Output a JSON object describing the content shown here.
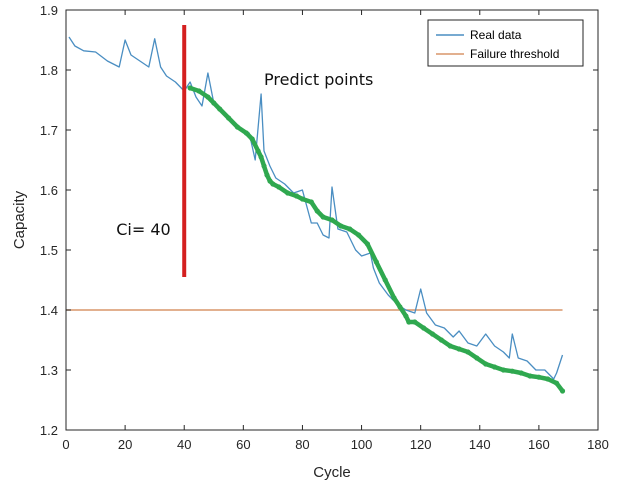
{
  "chart_data": {
    "type": "line",
    "xlabel": "Cycle",
    "ylabel": "Capacity",
    "xlim": [
      0,
      180
    ],
    "ylim": [
      1.2,
      1.9
    ],
    "xticks": [
      0,
      20,
      40,
      60,
      80,
      100,
      120,
      140,
      160,
      180
    ],
    "yticks": [
      1.2,
      1.3,
      1.4,
      1.5,
      1.6,
      1.7,
      1.8,
      1.9
    ],
    "grid": false,
    "legend_position": "top-right",
    "legend": [
      "Real data",
      "Failure threshold"
    ],
    "colors": {
      "real": "#4a8ec2",
      "threshold": "#d9956a",
      "predict": "#2fa84f",
      "marker": "#d42020",
      "axis": "#262626"
    },
    "series": [
      {
        "name": "Real data",
        "x": [
          1,
          3,
          6,
          10,
          14,
          18,
          20,
          22,
          25,
          28,
          30,
          32,
          34,
          37,
          40,
          42,
          44,
          46,
          48,
          50,
          53,
          56,
          59,
          62,
          64,
          66,
          67,
          69,
          71,
          74,
          77,
          80,
          83,
          85,
          87,
          89,
          90,
          92,
          95,
          98,
          100,
          103,
          104,
          106,
          109,
          112,
          115,
          118,
          120,
          122,
          125,
          128,
          131,
          133,
          136,
          139,
          142,
          145,
          148,
          150,
          151,
          153,
          156,
          159,
          162,
          165,
          166,
          168
        ],
        "y": [
          1.855,
          1.84,
          1.832,
          1.83,
          1.815,
          1.805,
          1.85,
          1.825,
          1.815,
          1.805,
          1.852,
          1.805,
          1.79,
          1.78,
          1.765,
          1.78,
          1.755,
          1.74,
          1.795,
          1.745,
          1.73,
          1.715,
          1.7,
          1.695,
          1.65,
          1.76,
          1.665,
          1.64,
          1.62,
          1.61,
          1.595,
          1.6,
          1.545,
          1.545,
          1.525,
          1.52,
          1.605,
          1.535,
          1.53,
          1.5,
          1.49,
          1.495,
          1.47,
          1.445,
          1.425,
          1.41,
          1.4,
          1.395,
          1.435,
          1.395,
          1.375,
          1.37,
          1.355,
          1.365,
          1.345,
          1.34,
          1.36,
          1.34,
          1.33,
          1.32,
          1.36,
          1.32,
          1.315,
          1.3,
          1.3,
          1.285,
          1.295,
          1.325
        ]
      },
      {
        "name": "Failure threshold",
        "x": [
          0,
          168
        ],
        "y": [
          1.4,
          1.4
        ]
      },
      {
        "x": [
          42,
          45,
          48,
          50,
          52,
          55,
          58,
          61,
          63,
          65,
          66,
          67,
          68,
          69,
          70,
          72,
          75,
          78,
          80,
          83,
          85,
          87,
          90,
          93,
          96,
          99,
          102,
          105,
          108,
          111,
          113,
          115,
          116,
          118,
          121,
          124,
          127,
          130,
          133,
          136,
          139,
          142,
          145,
          148,
          151,
          154,
          157,
          160,
          163,
          166,
          168
        ],
        "y": [
          1.77,
          1.765,
          1.755,
          1.745,
          1.735,
          1.72,
          1.705,
          1.695,
          1.685,
          1.665,
          1.655,
          1.64,
          1.625,
          1.615,
          1.61,
          1.605,
          1.595,
          1.59,
          1.585,
          1.58,
          1.565,
          1.555,
          1.55,
          1.54,
          1.535,
          1.525,
          1.51,
          1.48,
          1.45,
          1.42,
          1.405,
          1.39,
          1.38,
          1.38,
          1.37,
          1.36,
          1.35,
          1.34,
          1.335,
          1.33,
          1.32,
          1.31,
          1.305,
          1.3,
          1.298,
          1.295,
          1.29,
          1.288,
          1.285,
          1.278,
          1.265
        ]
      }
    ],
    "vertical_marker": {
      "x": 40,
      "y": [
        1.455,
        1.875
      ]
    },
    "annotations": [
      {
        "text": "Predict points",
        "x": 67,
        "y": 1.775
      },
      {
        "text": "Ci= 40",
        "x": 17,
        "y": 1.525
      }
    ]
  }
}
